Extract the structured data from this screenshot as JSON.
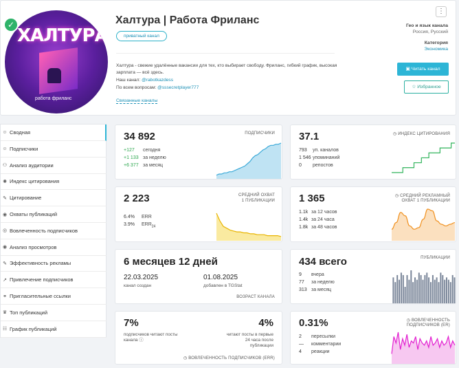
{
  "header": {
    "channel_title": "Халтура | Работа Фриланс",
    "badge": "приватный канал",
    "description": "Халтура - свежие удалённые вакансии для тех, кто выбирает свободу. Фриланс, гибкий график, высокая зарплата — всё здесь.",
    "our_channel_label": "Наш канал:",
    "our_channel_link": "@rabotkazdess",
    "questions_label": "По всем вопросам:",
    "questions_link": "@sssecretplayer777",
    "related_link": "Связанные каналы",
    "avatar_title": "ХАЛТУРА",
    "avatar_caption": "работа фриланс",
    "geo_label": "Гео и язык канала",
    "geo_value": "Россия, Русский",
    "category_label": "Категория",
    "category_value": "Экономика",
    "read_button": "Читать канал",
    "fav_button": "Избранное",
    "menu_icon": "more-vertical-icon"
  },
  "sidebar": {
    "items": [
      {
        "label": "Сводная",
        "icon": "☺"
      },
      {
        "label": "Подписчики",
        "icon": "☺"
      },
      {
        "label": "Анализ аудитории",
        "icon": "⚇"
      },
      {
        "label": "Индекс цитирования",
        "icon": "✺"
      },
      {
        "label": "Цитирование",
        "icon": "✎"
      },
      {
        "label": "Охваты публикаций",
        "icon": "◉"
      },
      {
        "label": "Вовлеченность подписчиков",
        "icon": "◎"
      },
      {
        "label": "Анализ просмотров",
        "icon": "◉"
      },
      {
        "label": "Эффективность рекламы",
        "icon": "✎"
      },
      {
        "label": "Привлечение подписчиков",
        "icon": "↗"
      },
      {
        "label": "Пригласительные ссылки",
        "icon": "⚭"
      },
      {
        "label": "Топ публикаций",
        "icon": "♛"
      },
      {
        "label": "График публикаций",
        "icon": "☷"
      }
    ]
  },
  "cards": {
    "subscribers": {
      "value": "34 892",
      "caption": "подписчики",
      "rows": [
        {
          "num": "+127",
          "label": "сегодня"
        },
        {
          "num": "+1 133",
          "label": "за неделю"
        },
        {
          "num": "+6 377",
          "label": "за месяц"
        }
      ]
    },
    "citation": {
      "value": "37.1",
      "caption": "индекс цитирования",
      "rows": [
        {
          "num": "793",
          "label": "уп. каналов"
        },
        {
          "num": "1 546",
          "label": "упоминаний"
        },
        {
          "num": "0",
          "label": "репостов"
        }
      ]
    },
    "reach": {
      "value": "2 223",
      "caption1": "средний охват",
      "caption2": "1 публикации",
      "rows": [
        {
          "num": "6.4%",
          "label": "ERR"
        },
        {
          "num": "3.9%",
          "label": "ERR",
          "sub": "24"
        }
      ]
    },
    "ad_reach": {
      "value": "1 365",
      "caption1": "средний рекламный",
      "caption2": "охват 1 публикации",
      "rows": [
        {
          "num": "1.1k",
          "label": "за 12 часов"
        },
        {
          "num": "1.4k",
          "label": "за 24 часа"
        },
        {
          "num": "1.8k",
          "label": "за 48 часов"
        }
      ]
    },
    "age": {
      "value": "6 месяцев 12 дней",
      "created_date": "22.03.2025",
      "created_label": "канал создан",
      "added_date": "01.08.2025",
      "added_label": "добавлен в TGStat",
      "caption": "возраст канала"
    },
    "posts": {
      "value": "434 всего",
      "caption": "публикации",
      "rows": [
        {
          "num": "9",
          "label": "вчера"
        },
        {
          "num": "77",
          "label": "за неделю"
        },
        {
          "num": "313",
          "label": "за месяц"
        }
      ]
    },
    "engagement": {
      "left_value": "7%",
      "left_label": "подписчиков читают посты канала",
      "right_value": "4%",
      "right_label": "читают посты в первые 24 часа после публикации",
      "caption": "вовлеченность подписчиков (ERR)"
    },
    "er": {
      "value": "0.31%",
      "caption1": "вовлеченность",
      "caption2": "подписчиков (ER)",
      "rows": [
        {
          "num": "2",
          "label": "пересылки"
        },
        {
          "num": "—",
          "label": "комментарии"
        },
        {
          "num": "4",
          "label": "реакции"
        }
      ]
    }
  },
  "chart_data": [
    {
      "type": "area",
      "title": "подписчики",
      "values": [
        2,
        3,
        3,
        4,
        4,
        5,
        5,
        6,
        7,
        8,
        9,
        10,
        12,
        14,
        17,
        19,
        20,
        22,
        24,
        25,
        27,
        28,
        28,
        29,
        29,
        30
      ]
    },
    {
      "type": "line",
      "title": "индекс цитирования",
      "values": [
        1,
        1,
        1,
        2,
        2,
        2,
        3,
        3,
        4,
        4,
        5,
        5,
        5,
        6,
        6,
        6,
        7,
        7
      ]
    },
    {
      "type": "area",
      "title": "средний охват 1 публикации",
      "values": [
        28,
        20,
        14,
        12,
        10,
        9,
        8,
        8,
        7,
        7,
        6,
        6,
        5,
        5,
        5,
        4,
        4,
        4,
        4,
        3
      ]
    },
    {
      "type": "area",
      "title": "средний рекламный охват",
      "values": [
        6,
        10,
        16,
        14,
        8,
        6,
        7,
        12,
        18,
        17,
        11,
        9,
        8,
        9,
        10
      ]
    },
    {
      "type": "bar",
      "title": "публикации",
      "values": [
        11,
        9,
        12,
        10,
        13,
        12,
        7,
        12,
        10,
        14,
        9,
        11,
        10,
        13,
        12,
        10,
        12,
        13,
        11,
        9,
        12,
        10,
        11,
        9,
        13,
        12,
        10,
        11,
        10,
        9,
        12,
        11
      ]
    },
    {
      "type": "area",
      "title": "вовлеченность подписчиков (ER)",
      "values": [
        4,
        12,
        9,
        14,
        6,
        11,
        8,
        13,
        7,
        10,
        9,
        12,
        6,
        11,
        9,
        8,
        10,
        7,
        12,
        8,
        9,
        11,
        7,
        10,
        8,
        9,
        12,
        7,
        10,
        8
      ]
    }
  ]
}
